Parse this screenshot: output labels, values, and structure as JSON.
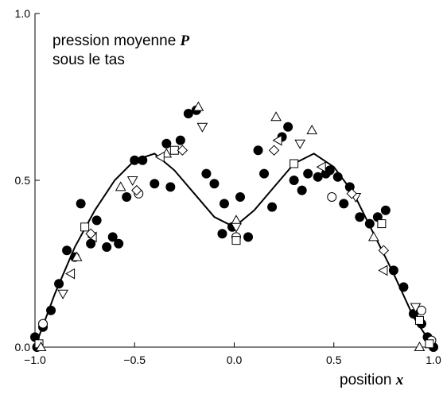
{
  "chart_data": {
    "type": "scatter",
    "title": "",
    "annotation": {
      "line1_prefix": "pression moyenne ",
      "line1_var": "P",
      "line2": "sous le tas"
    },
    "xlabel": {
      "prefix": "position ",
      "var": "x"
    },
    "ylabel": "",
    "xlim": [
      -1.0,
      1.0
    ],
    "ylim": [
      0.0,
      1.0
    ],
    "xticks": [
      "−1.0",
      "−0.5",
      "0.0",
      "0.5",
      "1.0"
    ],
    "yticks": [
      "0.0",
      "0.5",
      "1.0"
    ],
    "grid": false,
    "legend": "none",
    "colors": {
      "ink": "#000000",
      "paper": "#ffffff"
    },
    "series": [
      {
        "marker": "filled-circle",
        "points": [
          [
            -1.0,
            0.03
          ],
          [
            -0.99,
            0.0
          ],
          [
            -0.96,
            0.06
          ],
          [
            -0.92,
            0.11
          ],
          [
            -0.88,
            0.19
          ],
          [
            -0.84,
            0.29
          ],
          [
            -0.8,
            0.27
          ],
          [
            -0.77,
            0.43
          ],
          [
            -0.72,
            0.31
          ],
          [
            -0.69,
            0.38
          ],
          [
            -0.64,
            0.3
          ],
          [
            -0.61,
            0.33
          ],
          [
            -0.58,
            0.31
          ],
          [
            -0.54,
            0.45
          ],
          [
            -0.5,
            0.56
          ],
          [
            -0.46,
            0.56
          ],
          [
            -0.4,
            0.49
          ],
          [
            -0.34,
            0.61
          ],
          [
            -0.32,
            0.48
          ],
          [
            -0.27,
            0.62
          ],
          [
            -0.23,
            0.7
          ],
          [
            -0.19,
            0.71
          ],
          [
            -0.14,
            0.52
          ],
          [
            -0.1,
            0.49
          ],
          [
            -0.05,
            0.43
          ],
          [
            -0.06,
            0.34
          ],
          [
            -0.01,
            0.36
          ],
          [
            0.03,
            0.45
          ],
          [
            0.07,
            0.33
          ],
          [
            0.12,
            0.59
          ],
          [
            0.15,
            0.52
          ],
          [
            0.19,
            0.42
          ],
          [
            0.24,
            0.63
          ],
          [
            0.27,
            0.66
          ],
          [
            0.3,
            0.5
          ],
          [
            0.34,
            0.47
          ],
          [
            0.37,
            0.52
          ],
          [
            0.42,
            0.51
          ],
          [
            0.46,
            0.52
          ],
          [
            0.48,
            0.53
          ],
          [
            0.52,
            0.51
          ],
          [
            0.55,
            0.43
          ],
          [
            0.58,
            0.48
          ],
          [
            0.63,
            0.39
          ],
          [
            0.68,
            0.37
          ],
          [
            0.72,
            0.39
          ],
          [
            0.76,
            0.41
          ],
          [
            0.8,
            0.23
          ],
          [
            0.85,
            0.18
          ],
          [
            0.9,
            0.1
          ],
          [
            0.94,
            0.07
          ],
          [
            0.97,
            0.03
          ],
          [
            1.0,
            0.0
          ]
        ]
      },
      {
        "marker": "open-circle",
        "points": [
          [
            -0.96,
            0.07
          ],
          [
            -0.48,
            0.46
          ],
          [
            0.01,
            0.33
          ],
          [
            0.49,
            0.45
          ],
          [
            0.94,
            0.11
          ],
          [
            0.99,
            0.02
          ]
        ]
      },
      {
        "marker": "open-square",
        "points": [
          [
            -0.98,
            0.01
          ],
          [
            -0.75,
            0.36
          ],
          [
            -0.3,
            0.59
          ],
          [
            0.01,
            0.32
          ],
          [
            0.3,
            0.55
          ],
          [
            0.74,
            0.37
          ],
          [
            0.93,
            0.08
          ],
          [
            0.98,
            0.01
          ]
        ]
      },
      {
        "marker": "open-triangle-up",
        "points": [
          [
            -0.97,
            0.0
          ],
          [
            -0.79,
            0.27
          ],
          [
            -0.57,
            0.48
          ],
          [
            -0.34,
            0.58
          ],
          [
            -0.18,
            0.72
          ],
          [
            0.01,
            0.38
          ],
          [
            0.21,
            0.69
          ],
          [
            0.39,
            0.65
          ],
          [
            0.7,
            0.33
          ],
          [
            0.93,
            0.0
          ]
        ]
      },
      {
        "marker": "open-triangle-down",
        "points": [
          [
            -0.86,
            0.16
          ],
          [
            -0.51,
            0.5
          ],
          [
            -0.16,
            0.66
          ],
          [
            0.01,
            0.36
          ],
          [
            0.33,
            0.61
          ],
          [
            0.61,
            0.45
          ],
          [
            0.91,
            0.12
          ]
        ]
      },
      {
        "marker": "open-triangle-left",
        "points": [
          [
            -0.82,
            0.22
          ],
          [
            -0.71,
            0.33
          ],
          [
            -0.37,
            0.57
          ],
          [
            0.22,
            0.62
          ],
          [
            0.44,
            0.54
          ],
          [
            0.75,
            0.23
          ]
        ]
      },
      {
        "marker": "open-diamond",
        "points": [
          [
            -0.72,
            0.34
          ],
          [
            -0.49,
            0.47
          ],
          [
            -0.26,
            0.59
          ],
          [
            0.2,
            0.59
          ],
          [
            0.59,
            0.46
          ],
          [
            0.75,
            0.29
          ]
        ]
      }
    ],
    "curve": {
      "x": [
        -1.0,
        -0.9,
        -0.8,
        -0.7,
        -0.6,
        -0.5,
        -0.4,
        -0.3,
        -0.2,
        -0.1,
        0.0,
        0.1,
        0.2,
        0.3,
        0.4,
        0.5,
        0.6,
        0.7,
        0.8,
        0.9,
        1.0
      ],
      "y": [
        0.0,
        0.16,
        0.3,
        0.41,
        0.5,
        0.56,
        0.58,
        0.53,
        0.46,
        0.39,
        0.36,
        0.41,
        0.48,
        0.55,
        0.58,
        0.54,
        0.46,
        0.34,
        0.22,
        0.09,
        0.0
      ]
    }
  }
}
